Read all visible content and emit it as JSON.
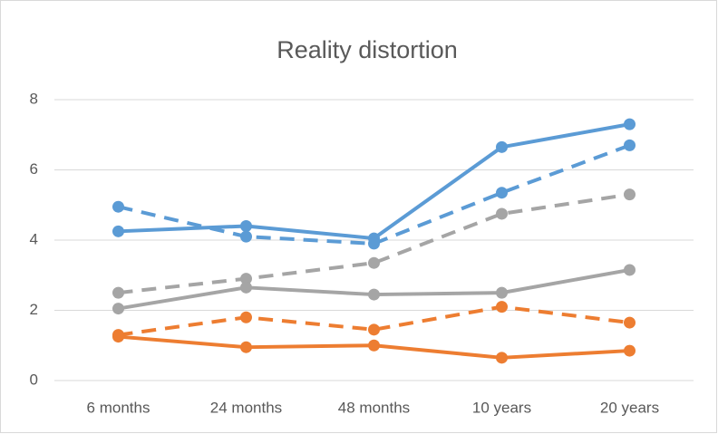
{
  "chart_data": {
    "type": "line",
    "title": "Reality distortion",
    "categories": [
      "6 months",
      "24 months",
      "48 months",
      "10 years",
      "20 years"
    ],
    "series": [
      {
        "color": "#5b9bd5",
        "dashed": false,
        "values": [
          4.25,
          4.4,
          4.05,
          6.65,
          7.3
        ]
      },
      {
        "color": "#5b9bd5",
        "dashed": true,
        "values": [
          4.95,
          4.1,
          3.9,
          5.35,
          6.7
        ]
      },
      {
        "color": "#a5a5a5",
        "dashed": true,
        "values": [
          2.5,
          2.9,
          3.35,
          4.75,
          5.3
        ]
      },
      {
        "color": "#a5a5a5",
        "dashed": false,
        "values": [
          2.05,
          2.65,
          2.45,
          2.5,
          3.15
        ]
      },
      {
        "color": "#ed7d31",
        "dashed": true,
        "values": [
          1.3,
          1.8,
          1.45,
          2.1,
          1.65
        ]
      },
      {
        "color": "#ed7d31",
        "dashed": false,
        "values": [
          1.25,
          0.95,
          1.0,
          0.65,
          0.85
        ]
      }
    ],
    "ylim": [
      0,
      8
    ],
    "yticks": [
      0,
      2,
      4,
      6,
      8
    ],
    "grid": true
  }
}
